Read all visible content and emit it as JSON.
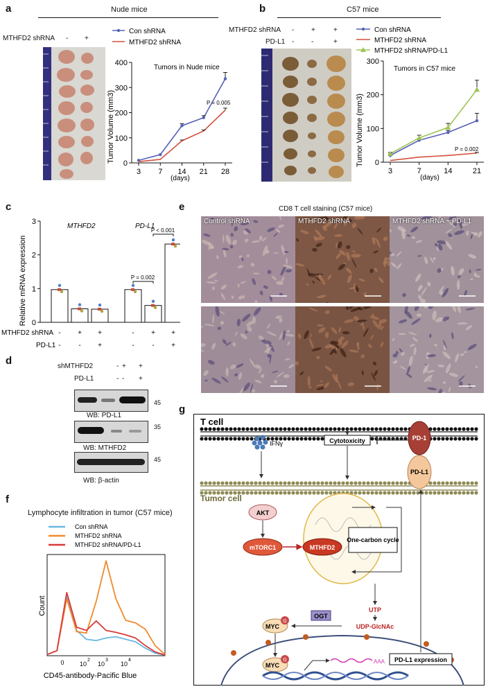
{
  "panels": {
    "a": "a",
    "b": "b",
    "c": "c",
    "d": "d",
    "e": "e",
    "f": "f",
    "g": "g"
  },
  "panel_a": {
    "title": "Nude mice",
    "row_label": "MTHFD2 shRNA",
    "lane_signs": [
      "-",
      "+"
    ],
    "chart_title": "Tumors in Nude mice",
    "legend": [
      "Con shRNA",
      "MTHFD2 shRNA"
    ],
    "ylabel": "Tumor Volume (mm3)",
    "xlabel": "(days)",
    "pvalue": "P = 0.005"
  },
  "panel_b": {
    "title": "C57 mice",
    "row_labels": [
      "MTHFD2 shRNA",
      "PD-L1"
    ],
    "lane_signs": [
      [
        "-",
        "+",
        "+"
      ],
      [
        "-",
        "-",
        "+"
      ]
    ],
    "chart_title": "Tumors in C57 mice",
    "legend": [
      "Con shRNA",
      "MTHFD2 shRNA",
      "MTHFD2 shRNA/PD-L1"
    ],
    "ylabel": "Tumor Volume (mm3)",
    "xlabel": "(days)",
    "pvalue": "P = 0.002"
  },
  "panel_c": {
    "ylabel": "Relative mRNA expression",
    "group_labels": [
      "MTHFD2",
      "PD-L1"
    ],
    "row_labels": [
      "MTHFD2 shRNA",
      "PD-L1"
    ],
    "row_signs": [
      [
        "-",
        "+",
        "+",
        "-",
        "+",
        "+"
      ],
      [
        "-",
        "-",
        "+",
        "-",
        "-",
        "+"
      ]
    ],
    "pvalues": [
      "P = 0.002",
      "P < 0.001"
    ]
  },
  "panel_d": {
    "row_labels": [
      "shMTHFD2",
      "PD-L1"
    ],
    "row_signs": [
      [
        "-",
        "+",
        "+"
      ],
      [
        "-",
        "-",
        "+"
      ]
    ],
    "blots": [
      {
        "label": "WB: PD-L1",
        "marker": "45"
      },
      {
        "label": "WB: MTHFD2",
        "marker": "35"
      },
      {
        "label": "",
        "marker": "45"
      }
    ],
    "last_label": "WB: β-actin"
  },
  "panel_e": {
    "title": "CD8 T cell staining (C57 mice)",
    "captions": [
      "Control shRNA",
      "MTHFD2 shRNA",
      "MTHFD2 shRNA + PD-L1"
    ]
  },
  "panel_f": {
    "title": "Lymphocyte infiltration in tumor (C57 mice)",
    "legend": [
      "Con shRNA",
      "MTHFD2 shRNA",
      "MTHFD2 shRNA/PD-L1"
    ],
    "ylabel": "Count",
    "xlabel": "CD45-antibody-Pacific Blue",
    "ticks": [
      "0",
      "10",
      "2",
      "10",
      "3",
      "10",
      "4"
    ]
  },
  "panel_g": {
    "t_cell": "T cell",
    "tumor_cell": "Tumor cell",
    "ifn": "IFNγ",
    "cytotoxicity": "Cytotoxicity",
    "pd1": "PD-1",
    "pdl1": "PD-L1",
    "akt": "AKT",
    "mtorc1": "mTORC1",
    "mthfd2": "MTHFD2",
    "one_carbon": "One-carbon cycle",
    "utp": "UTP",
    "udp": "UDP-GlcNAc",
    "ogt": "OGT",
    "myc": "MYC",
    "g": "G",
    "aaa": "AAA",
    "pdl1_expr": "PD-L1 expression"
  },
  "colors": {
    "con": "#5561b8",
    "mthfd2": "#d2503c",
    "pdl1": "#9dc454",
    "f_con": "#68b8e0",
    "f_mthfd2": "#f08a2c",
    "f_pdl1": "#d93a3a"
  },
  "chart_data": [
    {
      "type": "line",
      "title": "Tumors in Nude mice",
      "xlabel": "(days)",
      "ylabel": "Tumor Volume (mm3)",
      "x": [
        3,
        7,
        14,
        21,
        28
      ],
      "ylim": [
        0,
        400
      ],
      "yticks": [
        0,
        100,
        200,
        300,
        400
      ],
      "series": [
        {
          "name": "Con shRNA",
          "values": [
            10,
            33,
            148,
            180,
            335
          ],
          "errors": [
            0,
            0,
            8,
            8,
            25
          ]
        },
        {
          "name": "MTHFD2 shRNA",
          "values": [
            5,
            14,
            88,
            127,
            210
          ],
          "errors": [
            0,
            0,
            3,
            4,
            8
          ]
        }
      ]
    },
    {
      "type": "line",
      "title": "Tumors in C57 mice",
      "xlabel": "(days)",
      "ylabel": "Tumor Volume (mm3)",
      "x": [
        3,
        7,
        14,
        21
      ],
      "ylim": [
        0,
        300
      ],
      "yticks": [
        0,
        100,
        200,
        300
      ],
      "series": [
        {
          "name": "Con shRNA",
          "values": [
            20,
            65,
            88,
            123
          ],
          "errors": [
            4,
            5,
            6,
            22
          ]
        },
        {
          "name": "MTHFD2 shRNA",
          "values": [
            5,
            15,
            20,
            27
          ],
          "errors": [
            0,
            0,
            0,
            2
          ]
        },
        {
          "name": "MTHFD2 shRNA/PD-L1",
          "values": [
            25,
            72,
            103,
            215
          ],
          "errors": [
            4,
            8,
            12,
            28
          ]
        }
      ]
    },
    {
      "type": "bar",
      "ylabel": "Relative mRNA expression",
      "ylim": [
        0,
        3
      ],
      "yticks": [
        0,
        1,
        2,
        3
      ],
      "categories": [
        "MTHFD2 -/-",
        "MTHFD2 +/-",
        "MTHFD2 +/+",
        "PD-L1 -/-",
        "PD-L1 +/-",
        "PD-L1 +/+"
      ],
      "values": [
        0.97,
        0.4,
        0.39,
        0.97,
        0.5,
        2.32
      ]
    },
    {
      "type": "line",
      "title": "Lymphocyte infiltration in tumor (C57 mice)",
      "ylabel": "Count",
      "xlabel": "CD45-antibody-Pacific Blue",
      "series": [
        {
          "name": "Con shRNA",
          "values": [
            2,
            8,
            95,
            40,
            26,
            24,
            28,
            30,
            26,
            22,
            12,
            4,
            1
          ]
        },
        {
          "name": "MTHFD2 shRNA",
          "values": [
            2,
            8,
            90,
            38,
            36,
            86,
            150,
            90,
            56,
            52,
            42,
            16,
            2
          ]
        },
        {
          "name": "MTHFD2 shRNA/PD-L1",
          "values": [
            2,
            8,
            100,
            45,
            40,
            55,
            40,
            37,
            33,
            28,
            16,
            6,
            1
          ]
        }
      ]
    }
  ]
}
